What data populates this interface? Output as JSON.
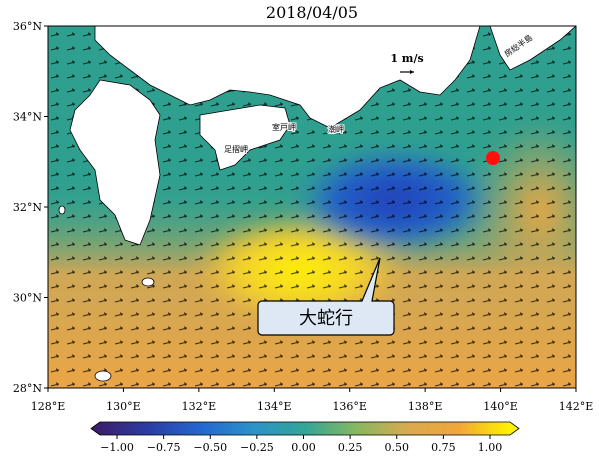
{
  "title": "2018/04/05",
  "map": {
    "lon_ticks": [
      {
        "value": 128,
        "label": "128°E"
      },
      {
        "value": 130,
        "label": "130°E"
      },
      {
        "value": 132,
        "label": "132°E"
      },
      {
        "value": 134,
        "label": "134°E"
      },
      {
        "value": 136,
        "label": "136°E"
      },
      {
        "value": 138,
        "label": "138°E"
      },
      {
        "value": 140,
        "label": "140°E"
      },
      {
        "value": 142,
        "label": "142°E"
      }
    ],
    "lat_ticks": [
      {
        "value": 28,
        "label": "28°N"
      },
      {
        "value": 30,
        "label": "30°N"
      },
      {
        "value": 32,
        "label": "32°N"
      },
      {
        "value": 34,
        "label": "34°N"
      },
      {
        "value": 36,
        "label": "36°N"
      }
    ],
    "scale_label": "1 m/s",
    "place_names": [
      "足摺岬",
      "室戸岬",
      "潮岬",
      "房総半島"
    ],
    "callout": "大蛇行"
  },
  "colorbar": {
    "ticks": [
      {
        "value": -1,
        "label": "−1.00"
      },
      {
        "value": -0.75,
        "label": "−0.75"
      },
      {
        "value": -0.5,
        "label": "−0.50"
      },
      {
        "value": -0.25,
        "label": "−0.25"
      },
      {
        "value": 0,
        "label": "0.00"
      },
      {
        "value": 0.25,
        "label": "0.25"
      },
      {
        "value": 0.5,
        "label": "0.50"
      },
      {
        "value": 0.75,
        "label": "0.75"
      },
      {
        "value": 1,
        "label": "1.00"
      }
    ]
  }
}
